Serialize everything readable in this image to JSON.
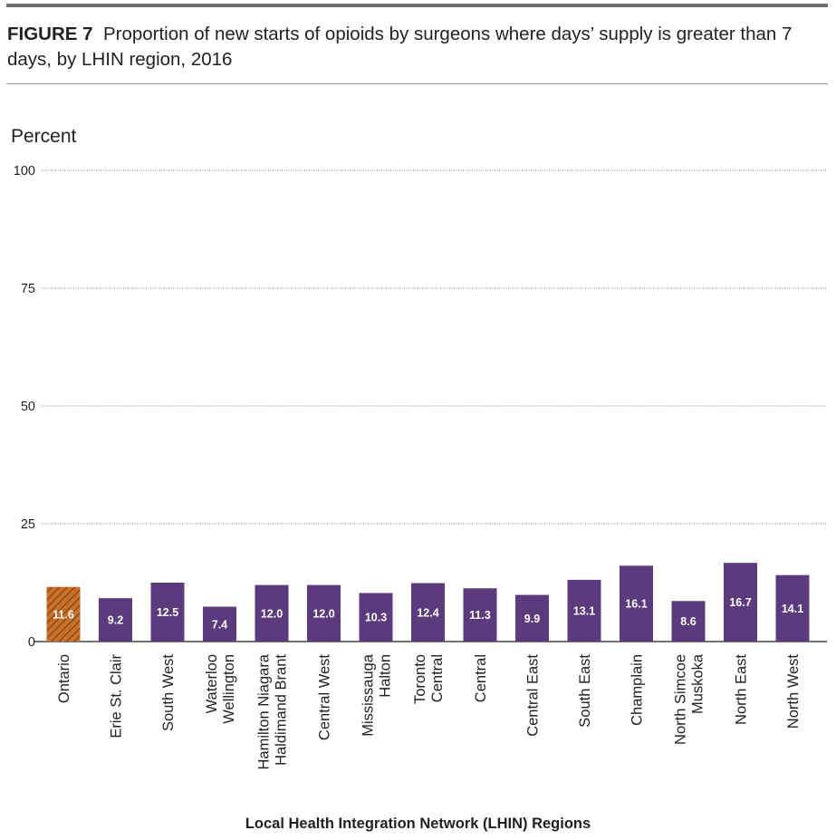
{
  "figure": {
    "label": "FIGURE 7",
    "title": "Proportion of new starts of opioids by surgeons where days’ supply is greater than 7 days, by LHIN region, 2016"
  },
  "colors": {
    "ontario_fill": "#c8702a",
    "ontario_hatch": "#8a4412",
    "region_fill": "#5b3b7e",
    "bar_label": "#ffffff",
    "grid": "#7a7a7a",
    "text": "#231f20"
  },
  "chart_data": {
    "type": "bar",
    "ylabel": "Percent",
    "xlabel": "Local Health Integration Network (LHIN) Regions",
    "ylim": [
      0,
      100
    ],
    "yticks": [
      0,
      25,
      50,
      75,
      100
    ],
    "grid": true,
    "categories": [
      "Ontario",
      "Erie St. Clair",
      "South West",
      "Waterloo Wellington",
      "Hamilton Niagara Haldimand Brant",
      "Central West",
      "Mississauga Halton",
      "Toronto Central",
      "Central",
      "Central East",
      "South East",
      "Champlain",
      "North Simcoe Muskoka",
      "North East",
      "North West"
    ],
    "category_lines": [
      [
        "Ontario"
      ],
      [
        "Erie St. Clair"
      ],
      [
        "South West"
      ],
      [
        "Waterloo",
        "Wellington"
      ],
      [
        "Hamilton Niagara",
        "Haldimand Brant"
      ],
      [
        "Central West"
      ],
      [
        "Mississauga",
        "Halton"
      ],
      [
        "Toronto",
        "Central"
      ],
      [
        "Central"
      ],
      [
        "Central East"
      ],
      [
        "South East"
      ],
      [
        "Champlain"
      ],
      [
        "North Simcoe",
        "Muskoka"
      ],
      [
        "North East"
      ],
      [
        "North West"
      ]
    ],
    "values": [
      11.6,
      9.2,
      12.5,
      7.4,
      12.0,
      12.0,
      10.3,
      12.4,
      11.3,
      9.9,
      13.1,
      16.1,
      8.6,
      16.7,
      14.1
    ],
    "value_labels": [
      "11.6",
      "9.2",
      "12.5",
      "7.4",
      "12.0",
      "12.0",
      "10.3",
      "12.4",
      "11.3",
      "9.9",
      "13.1",
      "16.1",
      "8.6",
      "16.7",
      "14.1"
    ]
  }
}
